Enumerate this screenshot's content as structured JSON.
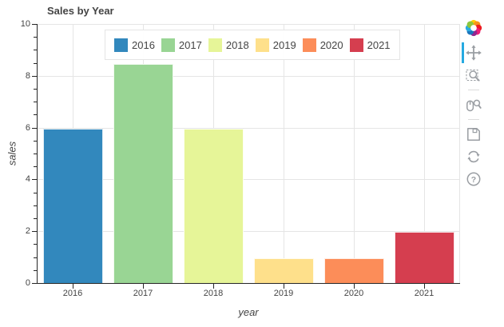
{
  "title": "Sales by Year",
  "chart_data": {
    "type": "bar",
    "title": "Sales by Year",
    "categories": [
      "2016",
      "2017",
      "2018",
      "2019",
      "2020",
      "2021"
    ],
    "values": [
      6,
      8.5,
      6,
      1,
      1,
      2
    ],
    "colors": [
      "#3288bd",
      "#99d594",
      "#e6f598",
      "#fee08b",
      "#fc8d59",
      "#d53e4f"
    ],
    "xlabel": "year",
    "ylabel": "sales",
    "ylim": [
      0,
      10
    ],
    "yticks": [
      0,
      2,
      4,
      6,
      8,
      10
    ],
    "minor_tick_step": 0.5,
    "grid": true,
    "bar_width_ratio": 0.85,
    "legend_position": "top-center",
    "legend_entries": [
      "2016",
      "2017",
      "2018",
      "2019",
      "2020",
      "2021"
    ]
  },
  "axis": {
    "line_color": "#262626",
    "grid_color": "#e5e5e5",
    "label_color": "#444444"
  },
  "toolbar": {
    "active_tool": "pan",
    "active_color": "#26aae1",
    "icon_color": "#9a9ea3",
    "help_glyph": "?",
    "logo_colors": [
      "#ffcb05",
      "#f7931e",
      "#ed1c24",
      "#ed1e79",
      "#92278f",
      "#1b75bc",
      "#29abe2",
      "#8cc63e"
    ],
    "tools": [
      {
        "name": "pan",
        "icon": "pan-icon",
        "active": true
      },
      {
        "name": "box-zoom",
        "icon": "box-zoom-icon",
        "active": false
      },
      {
        "name": "wheel-zoom",
        "icon": "wheel-zoom-icon",
        "active": false
      },
      {
        "name": "save",
        "icon": "save-icon",
        "active": false
      },
      {
        "name": "reset",
        "icon": "reset-icon",
        "active": false
      },
      {
        "name": "help",
        "icon": "help-icon",
        "active": false
      }
    ]
  }
}
